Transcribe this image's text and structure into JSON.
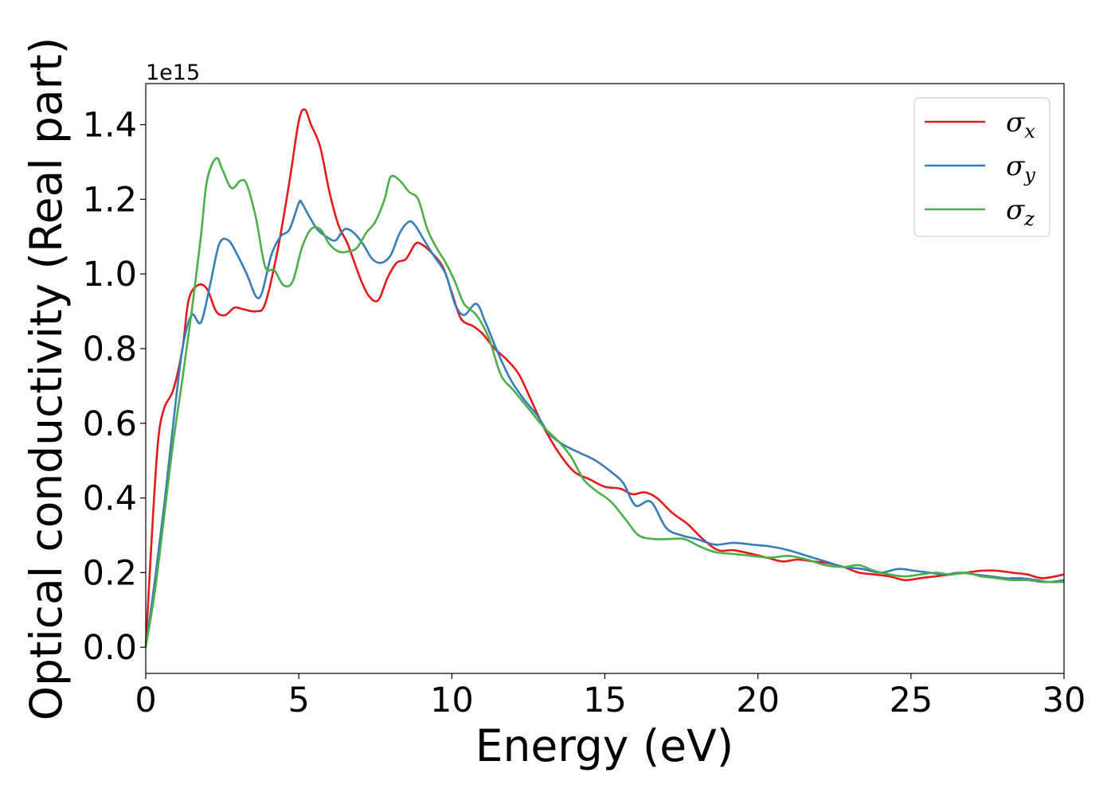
{
  "chart_data": {
    "type": "line",
    "xlabel": "Energy (eV)",
    "ylabel": "Optical conductivity (Real part)",
    "y_offset_text": "1e15",
    "xlim": [
      0,
      30
    ],
    "ylim": [
      -0.07,
      1.51
    ],
    "y_scale_factor": 1000000000000000.0,
    "x_ticks": [
      0,
      5,
      10,
      15,
      20,
      25,
      30
    ],
    "x_tick_labels": [
      "0",
      "5",
      "10",
      "15",
      "20",
      "25",
      "30"
    ],
    "y_ticks": [
      0.0,
      0.2,
      0.4,
      0.6,
      0.8,
      1.0,
      1.2,
      1.4
    ],
    "y_tick_labels": [
      "0.0",
      "0.2",
      "0.4",
      "0.6",
      "0.8",
      "1.0",
      "1.2",
      "1.4"
    ],
    "grid": false,
    "legend_position": "top-right",
    "series": [
      {
        "name": "σx",
        "symbol": "σ",
        "subscript": "x",
        "color": "#e41a1c",
        "x": [
          0,
          0.2,
          0.4,
          0.6,
          0.9,
          1.2,
          1.4,
          1.7,
          2.0,
          2.3,
          2.6,
          2.9,
          3.2,
          3.6,
          3.9,
          4.3,
          4.7,
          5.0,
          5.2,
          5.4,
          5.7,
          6.0,
          6.3,
          6.6,
          7.0,
          7.3,
          7.6,
          7.9,
          8.2,
          8.5,
          8.8,
          9.0,
          9.3,
          9.7,
          10.0,
          10.3,
          10.7,
          11.0,
          11.4,
          11.8,
          12.2,
          12.6,
          13.0,
          13.5,
          14.0,
          14.5,
          15.0,
          15.5,
          15.9,
          16.3,
          16.7,
          17.2,
          17.7,
          18.2,
          18.7,
          19.2,
          19.8,
          20.3,
          20.8,
          21.3,
          21.8,
          22.3,
          22.8,
          23.3,
          23.8,
          24.3,
          24.8,
          25.3,
          25.8,
          26.3,
          26.8,
          27.3,
          27.8,
          28.3,
          28.8,
          29.3,
          30.0
        ],
        "values": [
          0.0,
          0.3,
          0.55,
          0.64,
          0.69,
          0.8,
          0.93,
          0.97,
          0.96,
          0.9,
          0.89,
          0.91,
          0.905,
          0.9,
          0.92,
          1.06,
          1.25,
          1.41,
          1.44,
          1.4,
          1.34,
          1.22,
          1.13,
          1.08,
          0.99,
          0.94,
          0.93,
          0.99,
          1.03,
          1.04,
          1.08,
          1.08,
          1.06,
          1.02,
          0.95,
          0.88,
          0.86,
          0.84,
          0.8,
          0.77,
          0.73,
          0.66,
          0.59,
          0.52,
          0.47,
          0.45,
          0.43,
          0.425,
          0.41,
          0.415,
          0.4,
          0.36,
          0.33,
          0.29,
          0.26,
          0.26,
          0.25,
          0.24,
          0.23,
          0.235,
          0.23,
          0.225,
          0.215,
          0.2,
          0.195,
          0.19,
          0.18,
          0.185,
          0.19,
          0.195,
          0.2,
          0.205,
          0.205,
          0.2,
          0.195,
          0.185,
          0.195
        ]
      },
      {
        "name": "σy",
        "symbol": "σ",
        "subscript": "y",
        "color": "#377eb8",
        "x": [
          0,
          0.3,
          0.6,
          0.9,
          1.2,
          1.5,
          1.8,
          2.1,
          2.4,
          2.7,
          3.0,
          3.3,
          3.6,
          3.8,
          4.1,
          4.4,
          4.7,
          5.0,
          5.1,
          5.3,
          5.6,
          5.9,
          6.2,
          6.5,
          6.8,
          7.1,
          7.4,
          7.7,
          8.0,
          8.3,
          8.6,
          8.8,
          9.1,
          9.4,
          9.8,
          10.1,
          10.4,
          10.8,
          11.1,
          11.5,
          11.9,
          12.3,
          12.8,
          13.2,
          13.7,
          14.2,
          14.7,
          15.2,
          15.6,
          16.0,
          16.5,
          17.0,
          17.5,
          18.0,
          18.6,
          19.2,
          19.8,
          20.4,
          21.0,
          21.6,
          22.2,
          22.8,
          23.4,
          24.0,
          24.6,
          25.1,
          25.6,
          26.1,
          26.6,
          27.1,
          27.6,
          28.1,
          28.6,
          29.1,
          29.5,
          30.0
        ],
        "values": [
          0.0,
          0.18,
          0.38,
          0.6,
          0.8,
          0.89,
          0.87,
          0.97,
          1.08,
          1.09,
          1.05,
          1.0,
          0.94,
          0.95,
          1.05,
          1.1,
          1.12,
          1.19,
          1.19,
          1.16,
          1.12,
          1.1,
          1.09,
          1.12,
          1.11,
          1.08,
          1.04,
          1.03,
          1.05,
          1.11,
          1.14,
          1.13,
          1.09,
          1.05,
          1.0,
          0.92,
          0.89,
          0.92,
          0.87,
          0.79,
          0.72,
          0.67,
          0.62,
          0.57,
          0.54,
          0.52,
          0.5,
          0.47,
          0.44,
          0.38,
          0.39,
          0.32,
          0.3,
          0.29,
          0.275,
          0.28,
          0.275,
          0.27,
          0.26,
          0.245,
          0.23,
          0.215,
          0.21,
          0.2,
          0.21,
          0.205,
          0.2,
          0.195,
          0.2,
          0.195,
          0.19,
          0.185,
          0.185,
          0.18,
          0.175,
          0.18
        ]
      },
      {
        "name": "σz",
        "symbol": "σ",
        "subscript": "z",
        "color": "#4daf4a",
        "x": [
          0,
          0.3,
          0.6,
          0.9,
          1.2,
          1.5,
          1.8,
          2.0,
          2.3,
          2.5,
          2.8,
          3.1,
          3.3,
          3.6,
          3.9,
          4.2,
          4.5,
          4.8,
          5.1,
          5.4,
          5.7,
          6.0,
          6.3,
          6.6,
          6.9,
          7.2,
          7.5,
          7.8,
          8.0,
          8.3,
          8.6,
          8.9,
          9.2,
          9.5,
          9.8,
          10.1,
          10.4,
          10.8,
          11.2,
          11.6,
          12.0,
          12.5,
          13.0,
          13.5,
          13.9,
          14.3,
          14.7,
          15.2,
          15.7,
          16.1,
          16.6,
          17.1,
          17.6,
          18.1,
          18.6,
          19.2,
          19.8,
          20.4,
          21.0,
          21.6,
          22.2,
          22.8,
          23.3,
          23.8,
          24.3,
          24.8,
          25.3,
          25.8,
          26.3,
          26.8,
          27.3,
          27.8,
          28.3,
          28.8,
          29.3,
          30.0
        ],
        "values": [
          0.0,
          0.15,
          0.35,
          0.55,
          0.72,
          0.9,
          1.1,
          1.25,
          1.31,
          1.28,
          1.23,
          1.25,
          1.24,
          1.15,
          1.02,
          1.01,
          0.97,
          0.98,
          1.07,
          1.12,
          1.12,
          1.08,
          1.06,
          1.06,
          1.07,
          1.11,
          1.14,
          1.2,
          1.26,
          1.25,
          1.22,
          1.2,
          1.12,
          1.07,
          1.03,
          0.98,
          0.92,
          0.89,
          0.83,
          0.73,
          0.69,
          0.64,
          0.59,
          0.55,
          0.51,
          0.45,
          0.42,
          0.39,
          0.34,
          0.3,
          0.29,
          0.29,
          0.29,
          0.27,
          0.255,
          0.25,
          0.245,
          0.24,
          0.245,
          0.235,
          0.22,
          0.215,
          0.22,
          0.205,
          0.195,
          0.19,
          0.195,
          0.2,
          0.195,
          0.2,
          0.19,
          0.185,
          0.18,
          0.18,
          0.175,
          0.175
        ]
      }
    ]
  }
}
